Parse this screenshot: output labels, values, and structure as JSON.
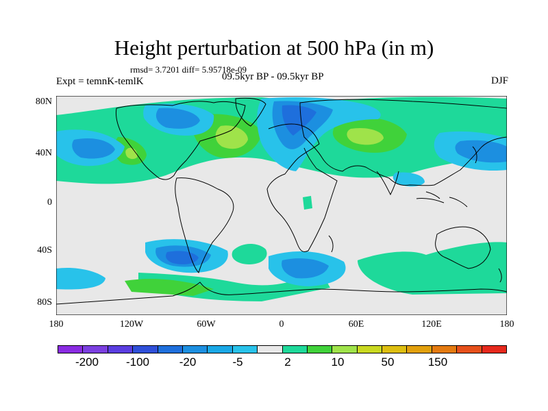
{
  "title": "Height perturbation at 500 hPa (in m)",
  "stats": "rmsd= 3.7201 diff= 5.95718e-09",
  "experiment": "Expt = temnK-temlK",
  "subtitle": "09.5kyr BP - 09.5kyr BP",
  "season": "DJF",
  "lat_labels": [
    "80N",
    "40N",
    "0",
    "40S",
    "80S"
  ],
  "lon_labels": [
    "180",
    "120W",
    "60W",
    "0",
    "60E",
    "120E",
    "180"
  ],
  "colorbar": {
    "colors": [
      "#8a2be2",
      "#7b3fe0",
      "#5a3de0",
      "#2f4fd8",
      "#1e6fdc",
      "#1c8fe0",
      "#19a8e6",
      "#28c2ea",
      "#e8e8e8",
      "#1ed99a",
      "#40d23a",
      "#9fe34a",
      "#c9d820",
      "#ddbe10",
      "#e2a00c",
      "#e47a10",
      "#e6501a",
      "#e6281c"
    ],
    "labels": [
      "-200",
      "-100",
      "-20",
      "-5",
      "2",
      "10",
      "50",
      "150"
    ]
  },
  "field_colors": {
    "background": "#e8e8e8",
    "pos1": "#1ed99a",
    "pos2": "#40d23a",
    "pos3": "#9fe34a",
    "neg1": "#28c2ea",
    "neg2": "#1c8fe0",
    "neg3": "#1e6fdc"
  }
}
